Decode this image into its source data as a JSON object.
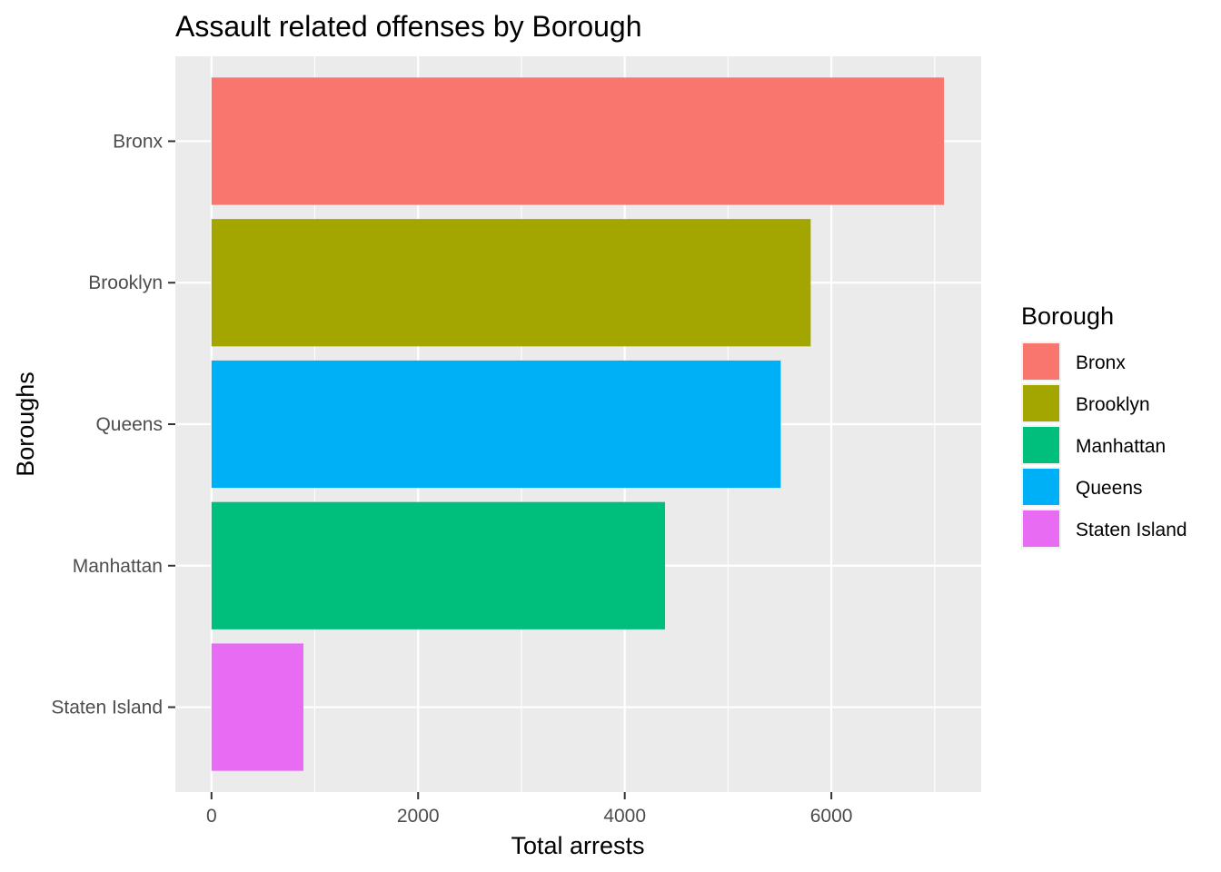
{
  "chart_data": {
    "type": "bar",
    "orientation": "horizontal",
    "title": "Assault related offenses by Borough",
    "xlabel": "Total arrests",
    "ylabel": "Boroughs",
    "categories": [
      "Bronx",
      "Brooklyn",
      "Queens",
      "Manhattan",
      "Staten Island"
    ],
    "values": [
      7090,
      5800,
      5510,
      4390,
      890
    ],
    "colors": [
      "#F8766D",
      "#A3A500",
      "#00BFC4",
      "#00C081",
      "#E76BF3"
    ],
    "bar_colors": [
      "#F8766D",
      "#A3A500",
      "#00B0F6",
      "#00BF7D",
      "#E76BF3"
    ],
    "xlim": [
      -350,
      7450
    ],
    "xticks": [
      0,
      2000,
      4000,
      6000
    ],
    "xtick_labels": [
      "0",
      "2000",
      "4000",
      "6000"
    ],
    "grid": true,
    "panel_background": "#EBEBEB",
    "legend": {
      "title": "Borough",
      "placement": "right",
      "entries": [
        "Bronx",
        "Brooklyn",
        "Manhattan",
        "Queens",
        "Staten Island"
      ],
      "colors": [
        "#F8766D",
        "#A3A500",
        "#00BF7D",
        "#00B0F6",
        "#E76BF3"
      ]
    }
  }
}
